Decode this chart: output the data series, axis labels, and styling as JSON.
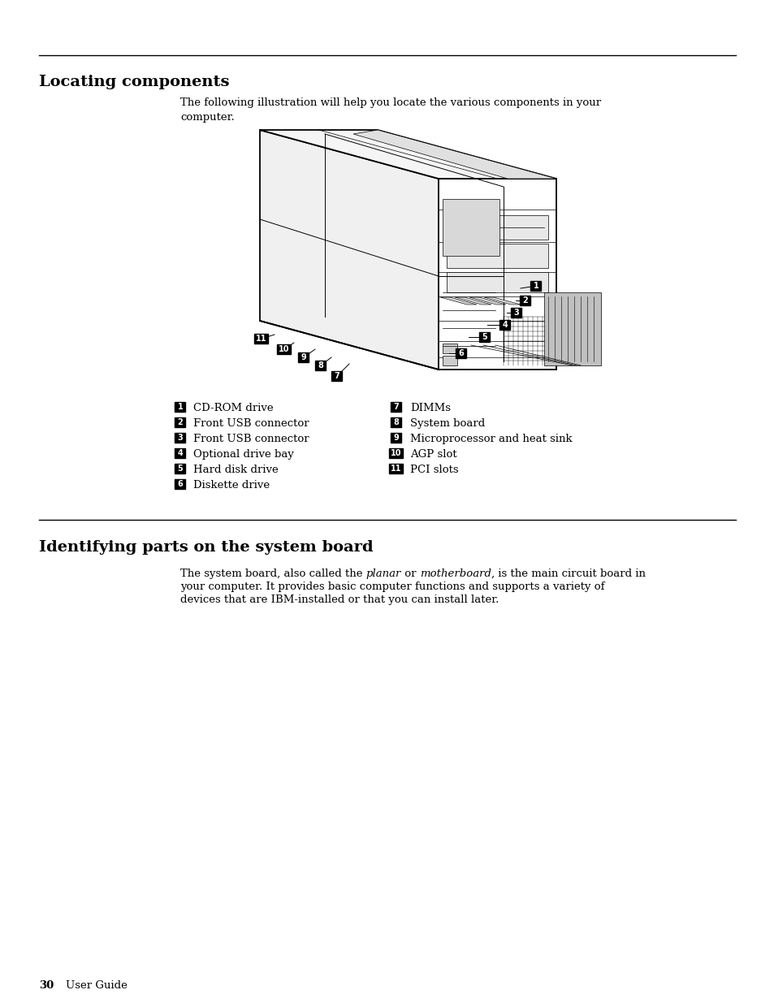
{
  "page_bg": "#ffffff",
  "section1_title": "Locating components",
  "section1_intro_line1": "The following illustration will help you locate the various components in your",
  "section1_intro_line2": "computer.",
  "left_items": [
    [
      "1",
      "CD-ROM drive"
    ],
    [
      "2",
      "Front USB connector"
    ],
    [
      "3",
      "Front USB connector"
    ],
    [
      "4",
      "Optional drive bay"
    ],
    [
      "5",
      "Hard disk drive"
    ],
    [
      "6",
      "Diskette drive"
    ]
  ],
  "right_items": [
    [
      "7",
      "DIMMs"
    ],
    [
      "8",
      "System board"
    ],
    [
      "9",
      "Microprocessor and heat sink"
    ],
    [
      "10",
      "AGP slot"
    ],
    [
      "11",
      "PCI slots"
    ]
  ],
  "section2_title": "Identifying parts on the system board",
  "section2_line1_a": "The system board, also called the ",
  "section2_line1_b": "planar",
  "section2_line1_c": " or ",
  "section2_line1_d": "motherboard",
  "section2_line1_e": ", is the main circuit board in",
  "section2_line2": "your computer. It provides basic computer functions and supports a variety of",
  "section2_line3": "devices that are IBM-installed or that you can install later.",
  "footer_bold": "30",
  "footer_normal": "    User Guide",
  "hr_color": "#000000",
  "text_color": "#000000",
  "badge_bg": "#000000",
  "badge_fg": "#ffffff",
  "title_fontsize": 14,
  "body_fontsize": 9.5,
  "badge_fontsize": 7,
  "footer_fontsize": 9.5
}
